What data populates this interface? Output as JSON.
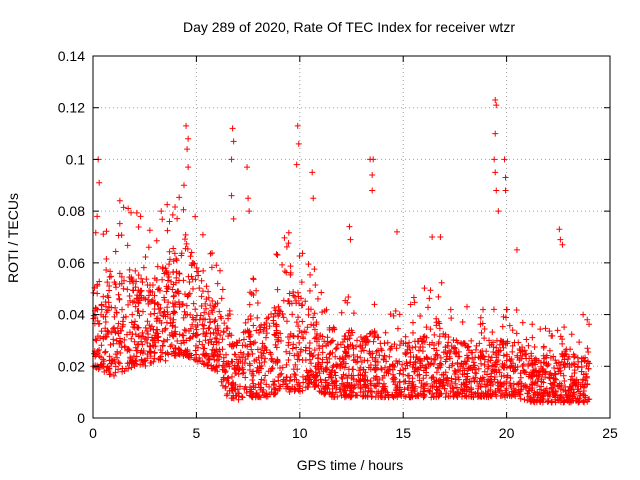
{
  "chart_data": {
    "type": "scatter",
    "title": "Day 289 of 2020, Rate Of TEC Index for receiver wtzr",
    "xlabel": "GPS time / hours",
    "ylabel": "ROTI / TECUs",
    "xlim": [
      0,
      25
    ],
    "ylim": [
      0,
      0.14
    ],
    "x_ticks": [
      0,
      5,
      10,
      15,
      20,
      25
    ],
    "y_ticks": [
      0,
      0.02,
      0.04,
      0.06,
      0.08,
      0.1,
      0.12,
      0.14
    ],
    "grid": true,
    "marker": "+",
    "color": "#ff0000",
    "envelope": {
      "x_hours": [
        0,
        0.5,
        1,
        1.5,
        2,
        2.5,
        3,
        3.5,
        4,
        4.5,
        5,
        5.5,
        6,
        6.5,
        7,
        7.5,
        8,
        8.5,
        9,
        9.5,
        10,
        10.5,
        11,
        11.5,
        12,
        12.5,
        13,
        13.5,
        14,
        14.5,
        15,
        15.5,
        16,
        16.5,
        17,
        17.5,
        18,
        18.5,
        19,
        19.5,
        20,
        20.5,
        21,
        21.5,
        22,
        22.5,
        23,
        23.5,
        24
      ],
      "typical_low": [
        0.02,
        0.018,
        0.016,
        0.018,
        0.02,
        0.02,
        0.022,
        0.022,
        0.024,
        0.024,
        0.022,
        0.02,
        0.018,
        0.008,
        0.007,
        0.008,
        0.008,
        0.008,
        0.01,
        0.01,
        0.01,
        0.012,
        0.01,
        0.008,
        0.008,
        0.008,
        0.008,
        0.008,
        0.008,
        0.008,
        0.008,
        0.008,
        0.008,
        0.008,
        0.008,
        0.008,
        0.008,
        0.008,
        0.008,
        0.008,
        0.008,
        0.008,
        0.006,
        0.006,
        0.006,
        0.006,
        0.006,
        0.006,
        0.006
      ],
      "typical_high": [
        0.05,
        0.06,
        0.055,
        0.06,
        0.058,
        0.055,
        0.055,
        0.06,
        0.065,
        0.07,
        0.06,
        0.05,
        0.045,
        0.035,
        0.03,
        0.04,
        0.035,
        0.04,
        0.045,
        0.05,
        0.05,
        0.045,
        0.035,
        0.03,
        0.03,
        0.035,
        0.03,
        0.035,
        0.03,
        0.03,
        0.03,
        0.035,
        0.035,
        0.04,
        0.035,
        0.03,
        0.03,
        0.03,
        0.03,
        0.03,
        0.03,
        0.03,
        0.025,
        0.025,
        0.025,
        0.025,
        0.025,
        0.025,
        0.025
      ]
    },
    "notable_points": [
      {
        "x": 0.25,
        "y": 0.1
      },
      {
        "x": 0.3,
        "y": 0.091
      },
      {
        "x": 0.2,
        "y": 0.078
      },
      {
        "x": 1.3,
        "y": 0.084
      },
      {
        "x": 1.7,
        "y": 0.081
      },
      {
        "x": 2.3,
        "y": 0.078
      },
      {
        "x": 3.3,
        "y": 0.08
      },
      {
        "x": 3.7,
        "y": 0.076
      },
      {
        "x": 4.5,
        "y": 0.113
      },
      {
        "x": 4.6,
        "y": 0.108
      },
      {
        "x": 4.55,
        "y": 0.104
      },
      {
        "x": 4.6,
        "y": 0.097
      },
      {
        "x": 4.4,
        "y": 0.09
      },
      {
        "x": 6.75,
        "y": 0.112
      },
      {
        "x": 6.8,
        "y": 0.107
      },
      {
        "x": 6.7,
        "y": 0.1
      },
      {
        "x": 6.7,
        "y": 0.086
      },
      {
        "x": 6.8,
        "y": 0.077
      },
      {
        "x": 7.45,
        "y": 0.097
      },
      {
        "x": 7.5,
        "y": 0.085
      },
      {
        "x": 7.55,
        "y": 0.08
      },
      {
        "x": 9.9,
        "y": 0.113
      },
      {
        "x": 9.95,
        "y": 0.106
      },
      {
        "x": 9.85,
        "y": 0.098
      },
      {
        "x": 10.6,
        "y": 0.095
      },
      {
        "x": 10.65,
        "y": 0.085
      },
      {
        "x": 12.4,
        "y": 0.074
      },
      {
        "x": 12.45,
        "y": 0.069
      },
      {
        "x": 13.4,
        "y": 0.1
      },
      {
        "x": 13.55,
        "y": 0.1
      },
      {
        "x": 13.5,
        "y": 0.094
      },
      {
        "x": 13.5,
        "y": 0.088
      },
      {
        "x": 14.7,
        "y": 0.072
      },
      {
        "x": 16.4,
        "y": 0.07
      },
      {
        "x": 16.8,
        "y": 0.07
      },
      {
        "x": 19.45,
        "y": 0.123
      },
      {
        "x": 19.5,
        "y": 0.121
      },
      {
        "x": 19.45,
        "y": 0.11
      },
      {
        "x": 19.4,
        "y": 0.1
      },
      {
        "x": 19.45,
        "y": 0.095
      },
      {
        "x": 19.5,
        "y": 0.088
      },
      {
        "x": 19.6,
        "y": 0.08
      },
      {
        "x": 19.9,
        "y": 0.1
      },
      {
        "x": 19.95,
        "y": 0.093
      },
      {
        "x": 19.95,
        "y": 0.088
      },
      {
        "x": 20.5,
        "y": 0.065
      },
      {
        "x": 22.55,
        "y": 0.073
      },
      {
        "x": 22.6,
        "y": 0.069
      },
      {
        "x": 22.7,
        "y": 0.067
      },
      {
        "x": 23.7,
        "y": 0.04
      },
      {
        "x": 23.9,
        "y": 0.038
      }
    ]
  }
}
